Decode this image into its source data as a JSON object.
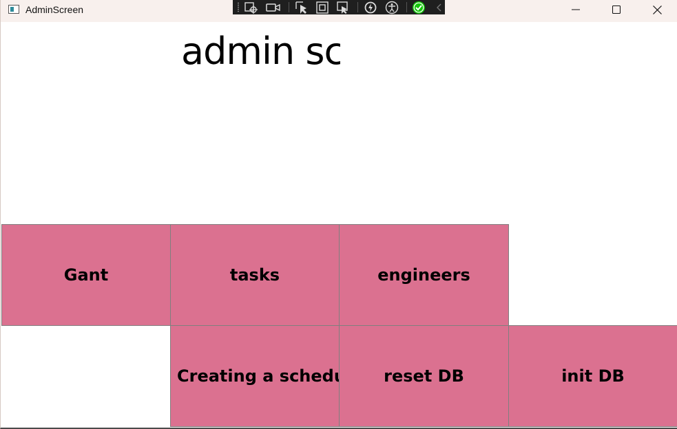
{
  "window": {
    "title": "AdminScreen",
    "controls": {
      "minimize": "minimize-icon",
      "maximize": "maximize-icon",
      "close": "close-icon"
    }
  },
  "debug_toolbar": {
    "icons": [
      "select-element-icon",
      "record-video-icon",
      "pointer-select-icon",
      "layout-adorner-icon",
      "track-focus-icon",
      "hot-reload-icon",
      "accessibility-icon",
      "checkmark-icon",
      "collapse-chevron-icon"
    ],
    "accent": "#16c60c"
  },
  "page": {
    "heading": "admin scr"
  },
  "buttons": {
    "gant": "Gant",
    "tasks": "tasks",
    "engineers": "engineers",
    "creating_schedule": "Creating a schedule",
    "reset_db": "reset DB",
    "init_db": "init DB"
  },
  "colors": {
    "button_fill": "#db7190",
    "button_border": "#7f7f7f",
    "titlebar": "#f8f0ed"
  }
}
